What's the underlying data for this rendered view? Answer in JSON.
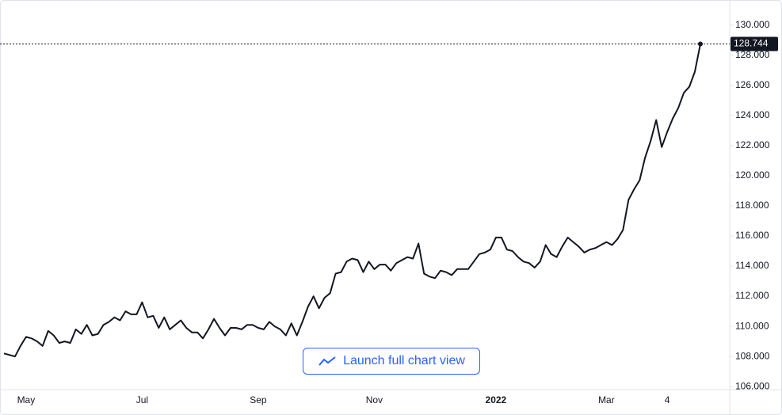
{
  "chart_data": {
    "type": "line",
    "categories": [
      null,
      null,
      null,
      null,
      "May",
      null,
      null,
      null,
      null,
      null,
      null,
      null,
      null,
      null,
      null,
      null,
      null,
      null,
      null,
      null,
      null,
      null,
      null,
      null,
      null,
      "Jul",
      null,
      null,
      null,
      null,
      null,
      null,
      null,
      null,
      null,
      null,
      null,
      null,
      null,
      null,
      null,
      null,
      null,
      null,
      null,
      null,
      "Sep",
      null,
      null,
      null,
      null,
      null,
      null,
      null,
      null,
      null,
      null,
      null,
      null,
      null,
      null,
      null,
      null,
      null,
      null,
      null,
      null,
      "Nov",
      null,
      null,
      null,
      null,
      null,
      null,
      null,
      null,
      null,
      null,
      null,
      null,
      null,
      null,
      null,
      null,
      null,
      null,
      null,
      null,
      null,
      "2022",
      null,
      null,
      null,
      null,
      null,
      null,
      null,
      null,
      null,
      null,
      null,
      null,
      null,
      null,
      null,
      null,
      null,
      null,
      null,
      "Mar",
      null,
      null,
      null,
      null,
      null,
      null,
      null,
      null,
      null,
      null,
      "4",
      null,
      null,
      null,
      null,
      null,
      null
    ],
    "values": [
      108.2,
      108.1,
      108.0,
      108.7,
      109.3,
      109.2,
      109.0,
      108.7,
      109.7,
      109.4,
      108.9,
      109.0,
      108.9,
      109.8,
      109.5,
      110.1,
      109.4,
      109.5,
      110.1,
      110.3,
      110.6,
      110.4,
      111.0,
      110.8,
      110.8,
      111.6,
      110.6,
      110.7,
      109.9,
      110.6,
      109.8,
      110.1,
      110.4,
      109.9,
      109.6,
      109.6,
      109.2,
      109.8,
      110.5,
      109.9,
      109.4,
      109.9,
      109.9,
      109.8,
      110.1,
      110.1,
      109.9,
      109.8,
      110.3,
      110.0,
      109.8,
      109.4,
      110.2,
      109.4,
      110.3,
      111.3,
      112.0,
      111.2,
      111.9,
      112.2,
      113.5,
      113.6,
      114.3,
      114.5,
      114.4,
      113.6,
      114.3,
      113.8,
      114.1,
      114.1,
      113.7,
      114.2,
      114.4,
      114.6,
      114.5,
      115.5,
      113.5,
      113.3,
      113.2,
      113.7,
      113.6,
      113.4,
      113.8,
      113.8,
      113.8,
      114.3,
      114.8,
      114.9,
      115.1,
      115.9,
      115.9,
      115.1,
      115.0,
      114.6,
      114.3,
      114.2,
      113.9,
      114.3,
      115.4,
      114.8,
      114.6,
      115.3,
      115.9,
      115.6,
      115.3,
      114.9,
      115.1,
      115.2,
      115.4,
      115.6,
      115.4,
      115.8,
      116.4,
      118.4,
      119.1,
      119.7,
      121.2,
      122.3,
      123.7,
      121.9,
      122.9,
      123.8,
      124.5,
      125.5,
      125.9,
      126.9,
      128.744
    ],
    "color": "#131722",
    "ylim": [
      105.8,
      131.4
    ],
    "yticks": [
      {
        "value": 106,
        "label": "106.000"
      },
      {
        "value": 108,
        "label": "108.000"
      },
      {
        "value": 110,
        "label": "110.000"
      },
      {
        "value": 112,
        "label": "112.000"
      },
      {
        "value": 114,
        "label": "114.000"
      },
      {
        "value": 116,
        "label": "116.000"
      },
      {
        "value": 118,
        "label": "118.000"
      },
      {
        "value": 120,
        "label": "120.000"
      },
      {
        "value": 122,
        "label": "122.000"
      },
      {
        "value": 124,
        "label": "124.000"
      },
      {
        "value": 126,
        "label": "126.000"
      },
      {
        "value": 128,
        "label": "128.000"
      },
      {
        "value": 130,
        "label": "130.000"
      }
    ]
  },
  "button": {
    "label": "Launch full chart view"
  }
}
